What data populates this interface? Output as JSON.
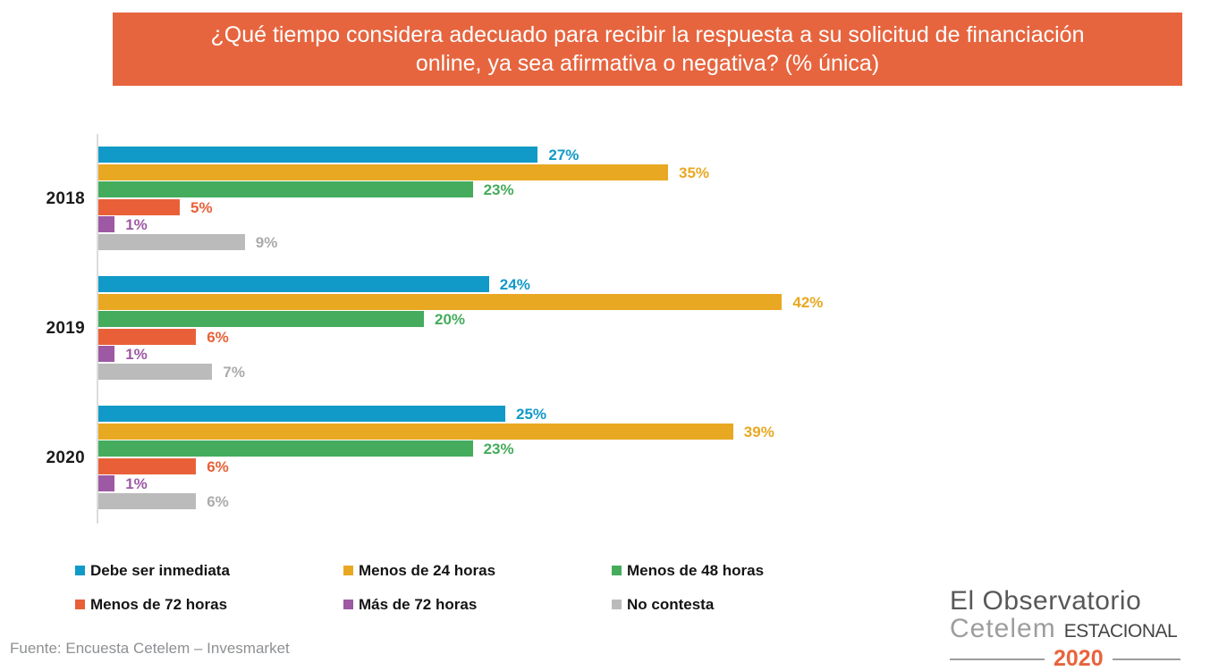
{
  "header": {
    "title": "¿Qué tiempo considera adecuado para recibir la respuesta a su solicitud de financiación online, ya sea afirmativa o negativa? (% única)",
    "banner_color": "#E6653F"
  },
  "chart_data": {
    "type": "bar",
    "orientation": "horizontal",
    "groups": [
      "2018",
      "2019",
      "2020"
    ],
    "series": [
      {
        "name": "Debe ser inmediata",
        "color": "#119AC7",
        "label_color": "#119AC7",
        "values": [
          27,
          24,
          25
        ]
      },
      {
        "name": "Menos de 24 horas",
        "color": "#E8A822",
        "label_color": "#E8A822",
        "values": [
          35,
          42,
          39
        ]
      },
      {
        "name": "Menos de 48 horas",
        "color": "#44AC5C",
        "label_color": "#44AC5C",
        "values": [
          23,
          20,
          23
        ]
      },
      {
        "name": "Menos de 72 horas",
        "color": "#E96038",
        "label_color": "#E96038",
        "values": [
          5,
          6,
          6
        ]
      },
      {
        "name": "Más de 72 horas",
        "color": "#9D59A3",
        "label_color": "#9D59A3",
        "values": [
          1,
          1,
          1
        ]
      },
      {
        "name": "No contesta",
        "color": "#BBBBBB",
        "label_color": "#ABABAB",
        "values": [
          9,
          7,
          6
        ]
      }
    ],
    "value_suffix": "%",
    "xlim": [
      0,
      45
    ],
    "grid": false,
    "legend_position": "bottom",
    "axis_color": "#DCDCDC"
  },
  "footer": {
    "source": "Fuente: Encuesta Cetelem – Invesmarket"
  },
  "logo": {
    "line1": "El Observatorio",
    "brand": "Cetelem",
    "edition": "ESTACIONAL",
    "year": "2020",
    "year_color": "#E8643C"
  }
}
